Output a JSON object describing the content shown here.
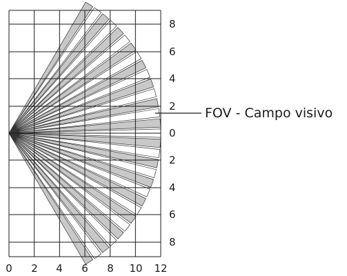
{
  "diagram": {
    "annotation": "FOV - Campo visivo",
    "x_ticks": [
      "0",
      "2",
      "4",
      "6",
      "8",
      "10",
      "12"
    ],
    "y_ticks": [
      "8",
      "6",
      "4",
      "2",
      "0",
      "2",
      "4",
      "6",
      "8"
    ],
    "colors": {
      "beam_fill": "#c8c8c8",
      "beam_stroke": "#333333",
      "grid": "#1a1a1a",
      "background": "#ffffff"
    }
  }
}
